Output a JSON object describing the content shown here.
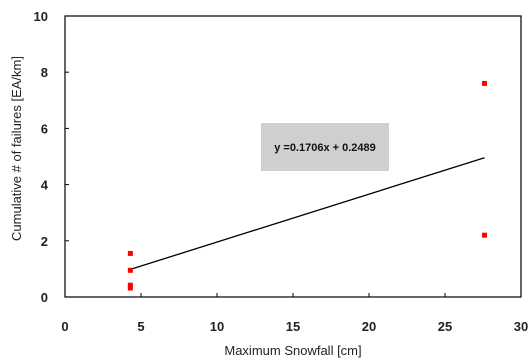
{
  "chart_data": {
    "type": "scatter",
    "title": "",
    "xlabel": "Maximum Snowfall [cm]",
    "ylabel": "Cumulative # of failures [EA/km]",
    "xlim": [
      0,
      30
    ],
    "ylim": [
      0,
      10
    ],
    "xticks": [
      0,
      5,
      10,
      15,
      20,
      25,
      30
    ],
    "yticks": [
      0,
      2,
      4,
      6,
      8,
      10
    ],
    "grid": false,
    "legend": "none",
    "series": [
      {
        "marker_color": "#ff0000",
        "points": [
          {
            "x": 4.3,
            "y": 1.55
          },
          {
            "x": 4.3,
            "y": 0.95
          },
          {
            "x": 4.3,
            "y": 0.42
          },
          {
            "x": 4.3,
            "y": 0.32
          },
          {
            "x": 27.6,
            "y": 7.6
          },
          {
            "x": 27.6,
            "y": 2.2
          }
        ]
      }
    ],
    "trendline": {
      "equation": "y =0.1706x + 0.2489",
      "slope": 0.1706,
      "intercept": 0.2489,
      "x_range": [
        4.3,
        27.6
      ],
      "color": "#000000"
    },
    "annotation_box_color": "#cfcfcf"
  }
}
